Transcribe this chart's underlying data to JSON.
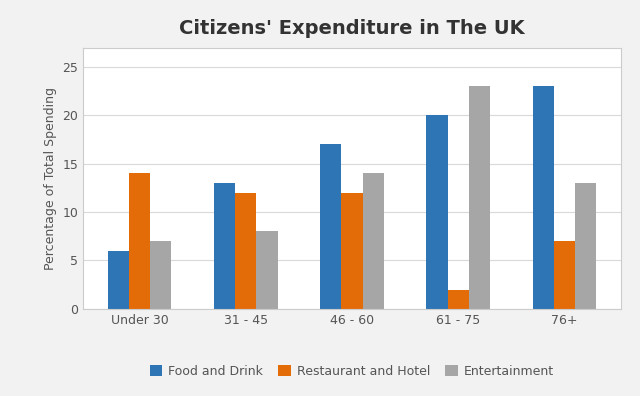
{
  "title": "Citizens' Expenditure in The UK",
  "ylabel": "Percentage of Total Spending",
  "categories": [
    "Under 30",
    "31 - 45",
    "46 - 60",
    "61 - 75",
    "76+"
  ],
  "series": [
    {
      "label": "Food and Drink",
      "color": "#2E75B6",
      "values": [
        6,
        13,
        17,
        20,
        23
      ]
    },
    {
      "label": "Restaurant and Hotel",
      "color": "#E36C09",
      "values": [
        14,
        12,
        12,
        2,
        7
      ]
    },
    {
      "label": "Entertainment",
      "color": "#A6A6A6",
      "values": [
        7,
        8,
        14,
        23,
        13
      ]
    }
  ],
  "ylim": [
    0,
    27
  ],
  "yticks": [
    0,
    5,
    10,
    15,
    20,
    25
  ],
  "bar_width": 0.2,
  "background_color": "#F2F2F2",
  "plot_background_color": "#FFFFFF",
  "frame_color": "#CCCCCC",
  "grid_color": "#D9D9D9",
  "title_fontsize": 14,
  "title_color": "#333333",
  "axis_label_fontsize": 9,
  "tick_fontsize": 9,
  "legend_fontsize": 9
}
